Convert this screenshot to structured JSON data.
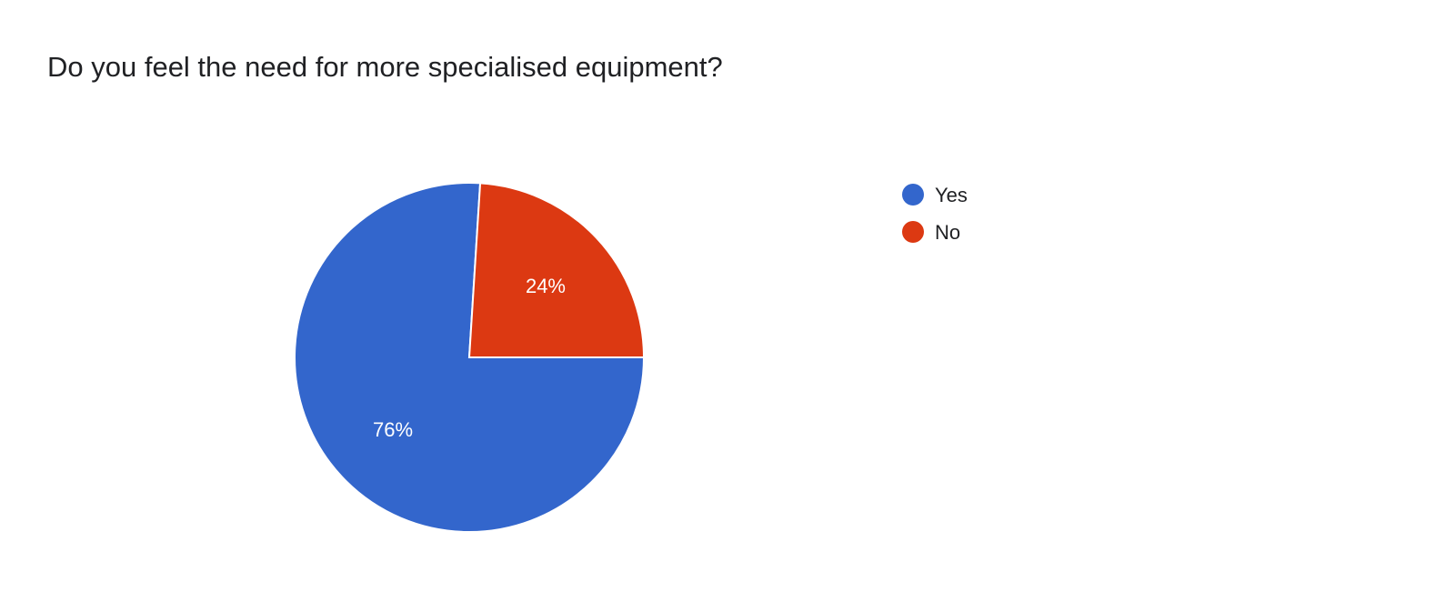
{
  "chart_data": {
    "type": "pie",
    "title": "Do you feel the need for more specialised equipment?",
    "categories": [
      "Yes",
      "No"
    ],
    "values": [
      76,
      24
    ],
    "data_labels": [
      "76%",
      "24%"
    ],
    "colors": [
      "#3366cc",
      "#dc3912"
    ],
    "legend_position": "right"
  }
}
